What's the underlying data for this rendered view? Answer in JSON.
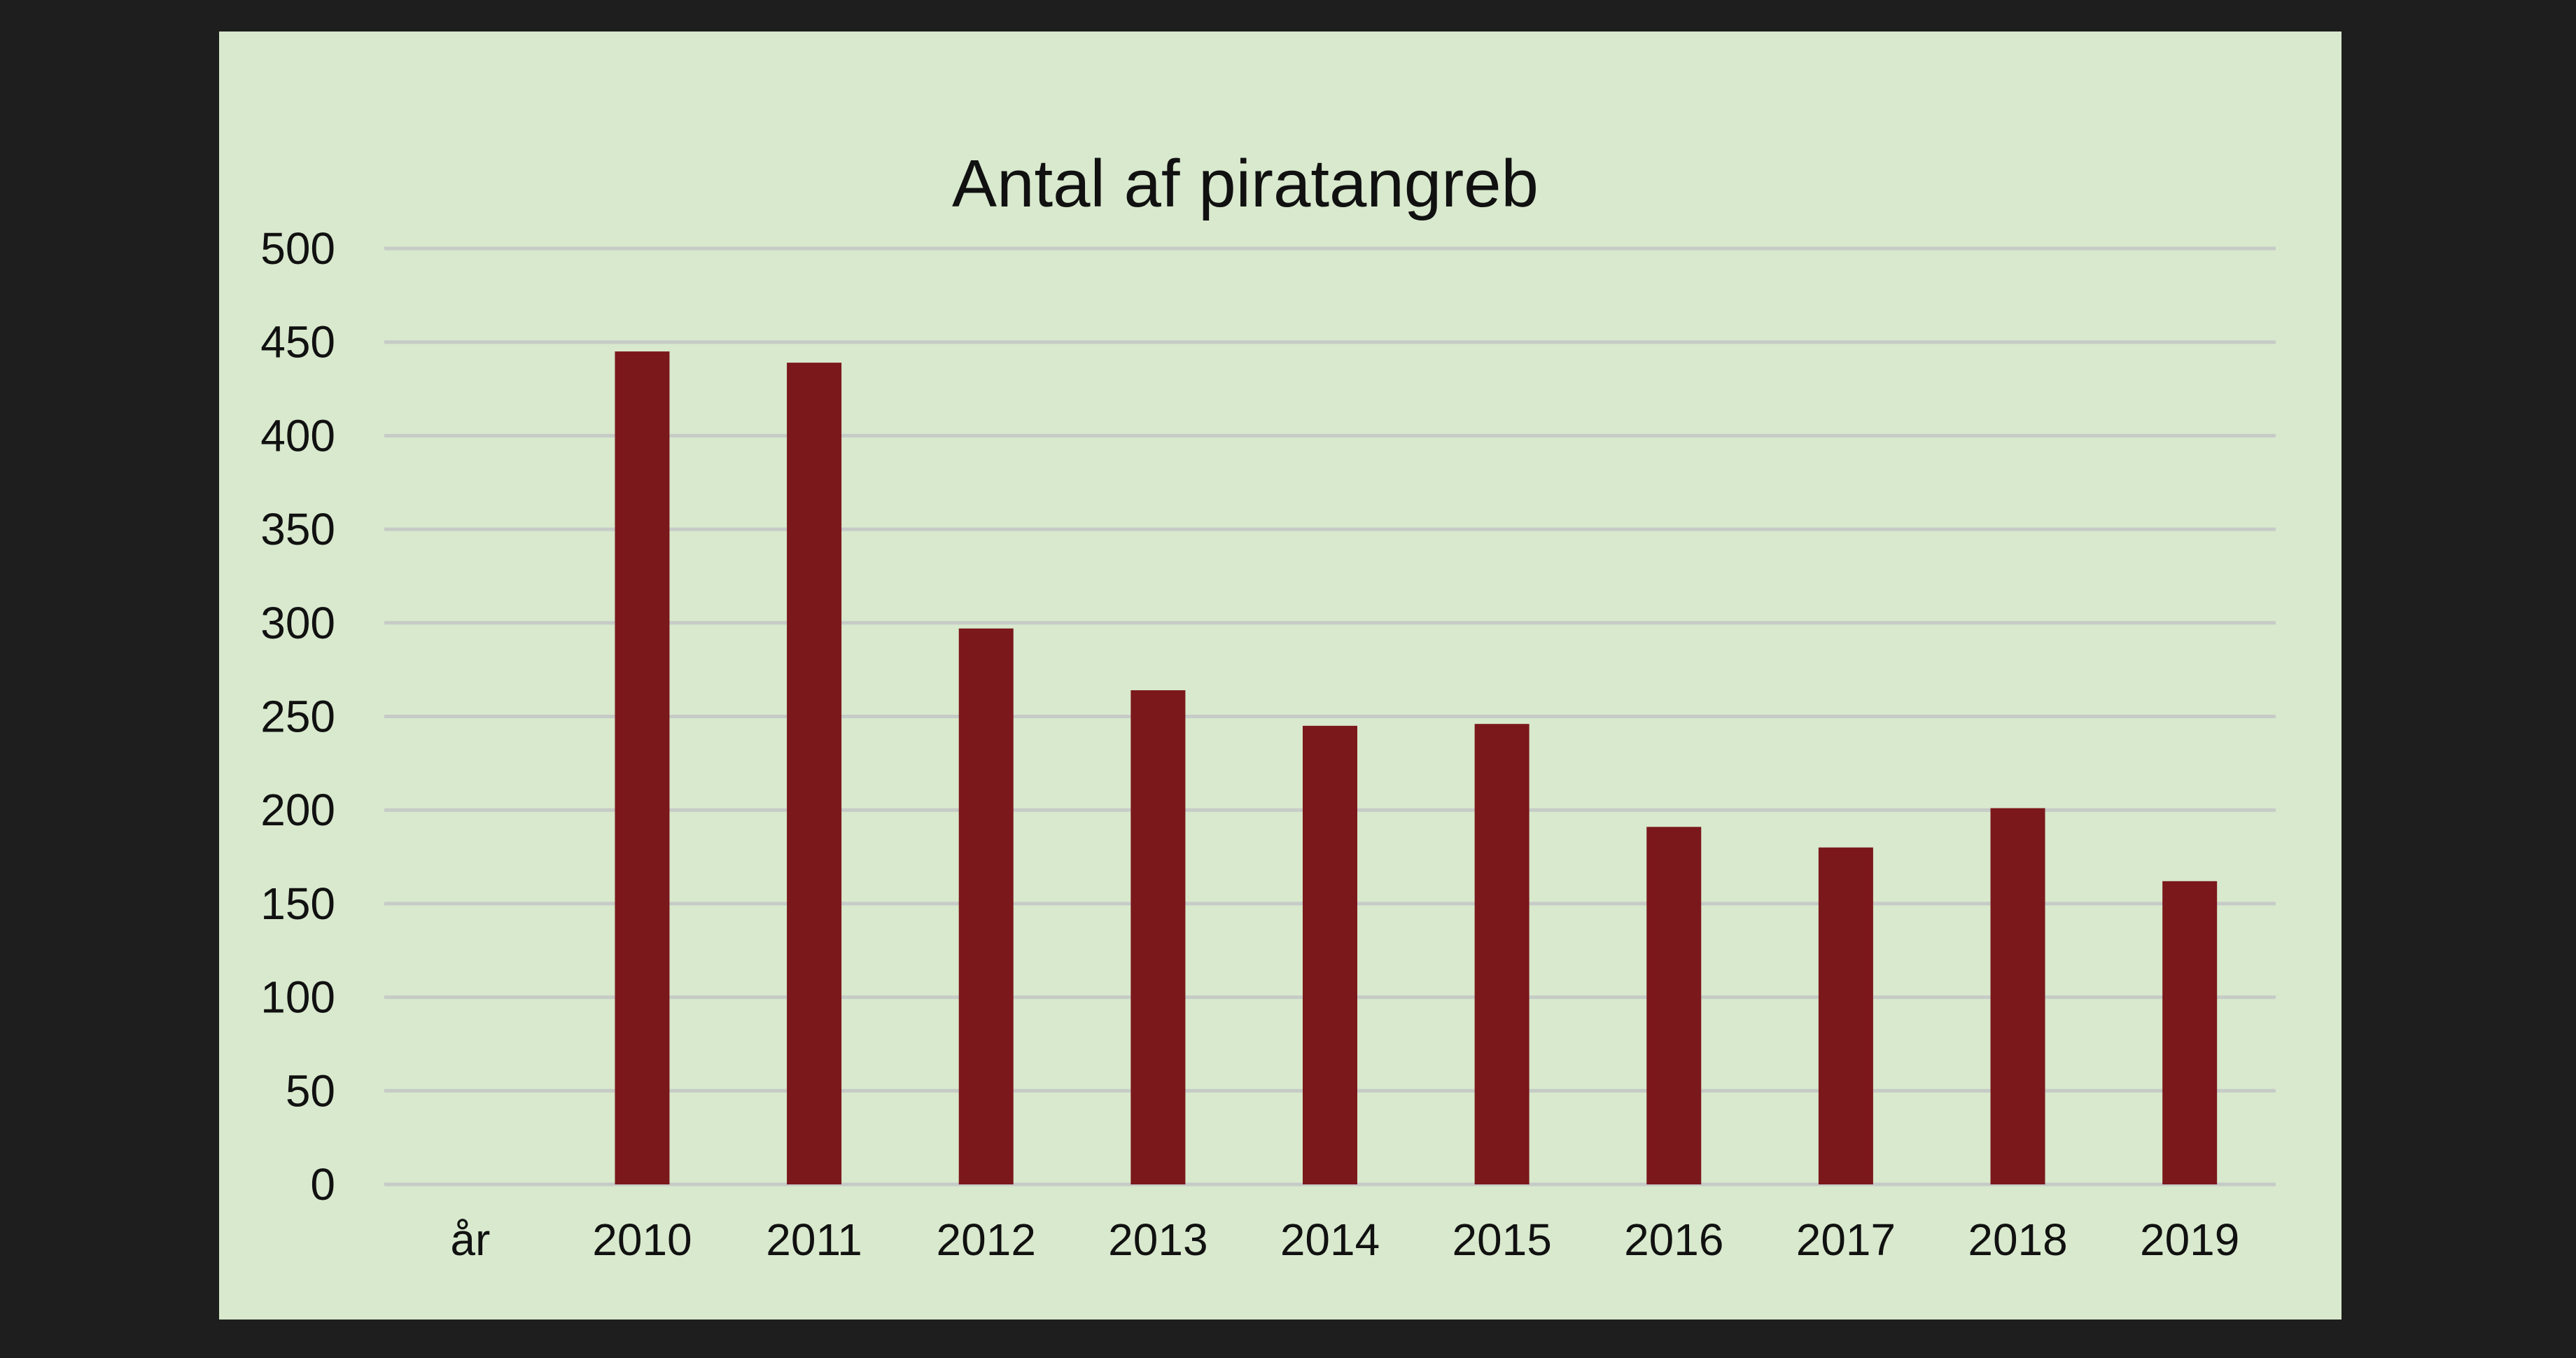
{
  "chart_data": {
    "type": "bar",
    "title": "Antal af piratangreb",
    "xlabel": "",
    "ylabel": "",
    "categories": [
      "år",
      "2010",
      "2011",
      "2012",
      "2013",
      "2014",
      "2015",
      "2016",
      "2017",
      "2018",
      "2019"
    ],
    "values": [
      null,
      445,
      439,
      297,
      264,
      245,
      246,
      191,
      180,
      201,
      162
    ],
    "ylim": [
      0,
      500
    ],
    "yticks": [
      "0",
      "50",
      "100",
      "150",
      "200",
      "250",
      "300",
      "350",
      "400",
      "450",
      "500"
    ],
    "grid": true,
    "legend": "none",
    "colors": {
      "bar": "#7b181b",
      "grid": "#c6cbc7",
      "background": "#d8e9cd",
      "frame": "#1e1e1e"
    }
  }
}
